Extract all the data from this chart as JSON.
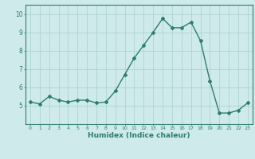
{
  "x": [
    0,
    1,
    2,
    3,
    4,
    5,
    6,
    7,
    8,
    9,
    10,
    11,
    12,
    13,
    14,
    15,
    16,
    17,
    18,
    19,
    20,
    21,
    22,
    23
  ],
  "y": [
    5.2,
    5.1,
    5.5,
    5.3,
    5.2,
    5.3,
    5.3,
    5.15,
    5.2,
    5.8,
    6.7,
    7.6,
    8.3,
    9.0,
    9.75,
    9.25,
    9.25,
    9.55,
    8.55,
    6.35,
    4.6,
    4.6,
    4.75,
    5.15
  ],
  "xlabel": "Humidex (Indice chaleur)",
  "ylim": [
    4.0,
    10.5
  ],
  "xlim": [
    -0.5,
    23.5
  ],
  "line_color": "#2d7d6e",
  "bg_color": "#ceeaea",
  "grid_color": "#aacece",
  "axis_color": "#2d7d6e",
  "label_color": "#2d7d6e",
  "tick_color": "#2d7d6e",
  "yticks": [
    5,
    6,
    7,
    8,
    9,
    10
  ],
  "xticks": [
    0,
    1,
    2,
    3,
    4,
    5,
    6,
    7,
    8,
    9,
    10,
    11,
    12,
    13,
    14,
    15,
    16,
    17,
    18,
    19,
    20,
    21,
    22,
    23
  ]
}
